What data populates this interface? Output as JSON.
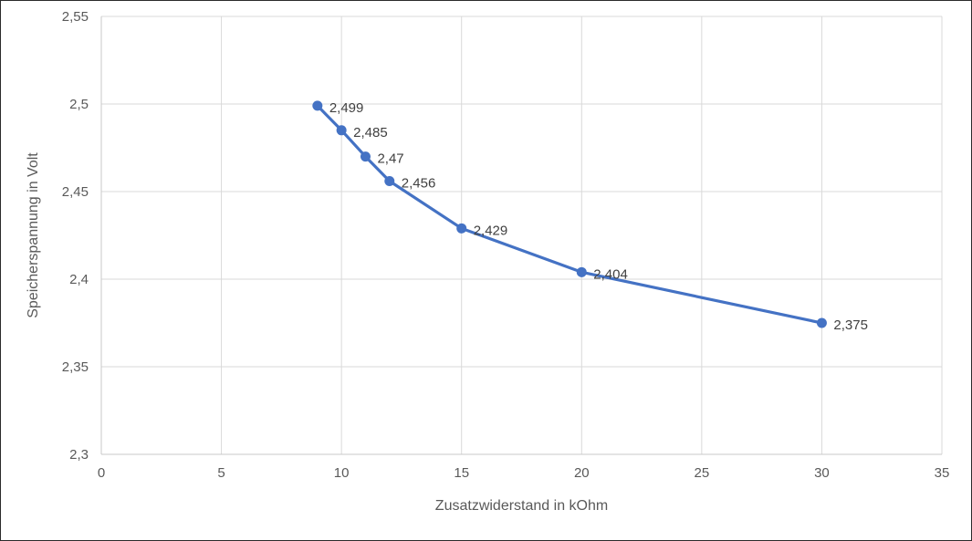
{
  "chart": {
    "xlabel": "Zusatzwiderstand in kOhm",
    "ylabel": "Speicherspannung in Volt"
  },
  "chart_data": {
    "type": "line",
    "title": "",
    "xlabel": "Zusatzwiderstand in kOhm",
    "ylabel": "Speicherspannung in Volt",
    "series": [
      {
        "name": "Speicherspannung",
        "x": [
          9,
          10,
          11,
          12,
          15,
          20,
          30
        ],
        "y": [
          2.499,
          2.485,
          2.47,
          2.456,
          2.429,
          2.404,
          2.375
        ],
        "point_labels": [
          "2,499",
          "2,485",
          "2,47",
          "2,456",
          "2,429",
          "2,404",
          "2,375"
        ]
      }
    ],
    "xlim": [
      0,
      35
    ],
    "ylim": [
      2.3,
      2.55
    ],
    "x_ticks": [
      0,
      5,
      10,
      15,
      20,
      25,
      30,
      35
    ],
    "y_ticks": [
      2.3,
      2.35,
      2.4,
      2.45,
      2.5,
      2.55
    ],
    "x_tick_labels": [
      "0",
      "5",
      "10",
      "15",
      "20",
      "25",
      "30",
      "35"
    ],
    "y_tick_labels": [
      "2,3",
      "2,35",
      "2,4",
      "2,45",
      "2,5",
      "2,55"
    ],
    "grid": true,
    "legend": false,
    "line_color": "#4472C4",
    "marker_color": "#4472C4",
    "grid_color": "#D9D9D9",
    "axis_line_color": "#C9C9C9"
  }
}
